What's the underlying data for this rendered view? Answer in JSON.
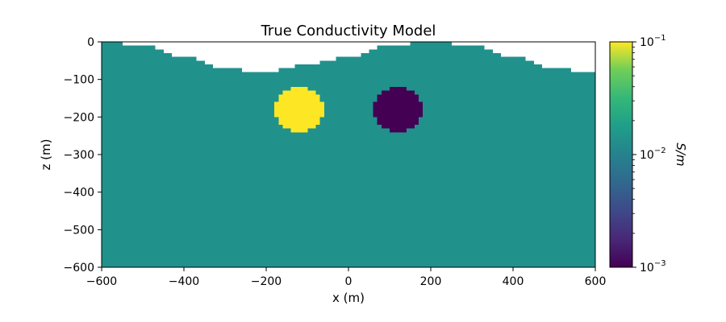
{
  "chart_data": {
    "type": "heatmap",
    "title": "True Conductivity Model",
    "xlabel": "x (m)",
    "ylabel": "z (m)",
    "xlim": [
      -600,
      600
    ],
    "ylim": [
      -600,
      0
    ],
    "x_ticks": [
      -600,
      -400,
      -200,
      0,
      200,
      400,
      600
    ],
    "x_tick_labels": [
      "−600",
      "−400",
      "−200",
      "0",
      "200",
      "400",
      "600"
    ],
    "y_ticks": [
      0,
      -100,
      -200,
      -300,
      -400,
      -500,
      -600
    ],
    "y_tick_labels": [
      "0",
      "−100",
      "−200",
      "−300",
      "−400",
      "−500",
      "−600"
    ],
    "grid": false,
    "cell_size_m": 10,
    "background_conductivity": 0.01,
    "topography": {
      "description": "surface elevation",
      "x": [
        -600,
        -500,
        -400,
        -300,
        -200,
        -100,
        0,
        100,
        200,
        300,
        400,
        500,
        600
      ],
      "z": [
        0,
        -10,
        -40,
        -72,
        -80,
        -60,
        -40,
        -10,
        0,
        -10,
        -40,
        -72,
        -80
      ]
    },
    "bodies": [
      {
        "shape": "sphere",
        "center_x": -120,
        "center_z": -180,
        "radius": 60,
        "conductivity": 0.1
      },
      {
        "shape": "sphere",
        "center_x": 120,
        "center_z": -180,
        "radius": 60,
        "conductivity": 0.001
      }
    ],
    "colorbar": {
      "label": "S/m",
      "scale": "log",
      "range": [
        0.001,
        0.1
      ],
      "colormap": "viridis",
      "tick_labels": [
        {
          "value": 0.1,
          "base": "10",
          "exp": "−1"
        },
        {
          "value": 0.01,
          "base": "10",
          "exp": "−2"
        },
        {
          "value": 0.001,
          "base": "10",
          "exp": "−3"
        }
      ]
    },
    "colors": {
      "background_cell": "#21918c",
      "conductive_body": "#fde725",
      "resistive_body": "#440154"
    }
  }
}
